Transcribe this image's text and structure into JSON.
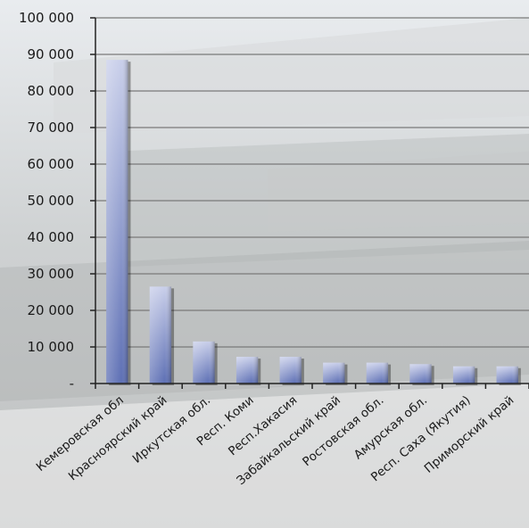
{
  "chart_data": {
    "type": "bar",
    "title": "",
    "xlabel": "",
    "ylabel": "",
    "categories": [
      "Кемеровская обл",
      "Красноярский край",
      "Иркутская обл.",
      "Респ. Коми",
      "Респ.Хакасия",
      "Забайкальский край",
      "Ростовская обл.",
      "Амурская обл.",
      "Респ. Саха (Якутия)",
      "Приморский край"
    ],
    "values": [
      88500,
      26500,
      11500,
      7300,
      7300,
      5700,
      5700,
      5300,
      4700,
      4700
    ],
    "ylim": [
      0,
      100000
    ],
    "yticks": [
      0,
      10000,
      20000,
      30000,
      40000,
      50000,
      60000,
      70000,
      80000,
      90000,
      100000
    ],
    "ytick_labels": [
      "-",
      "10 000",
      "20 000",
      "30 000",
      "40 000",
      "50 000",
      "60 000",
      "70 000",
      "80 000",
      "90 000",
      "100 000"
    ],
    "grid": true,
    "legend": "none",
    "colors": {
      "bar_top": "#c9cfea",
      "bar_bottom": "#5d6fb4",
      "grid": "#7a7a7a",
      "axis": "#222222"
    }
  }
}
